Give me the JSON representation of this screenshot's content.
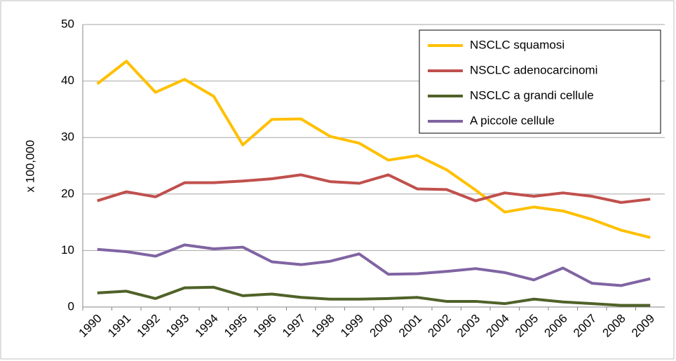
{
  "chart_data": {
    "type": "line",
    "y_label": "x 100,000",
    "categories": [
      "1990",
      "1991",
      "1992",
      "1993",
      "1994",
      "1995",
      "1996",
      "1997",
      "1998",
      "1999",
      "2000",
      "2001",
      "2002",
      "2003",
      "2004",
      "2005",
      "2006",
      "2007",
      "2008",
      "2009"
    ],
    "series": [
      {
        "name": "NSCLC squamosi",
        "color": "#ffc000",
        "values": [
          39.5,
          43.5,
          38,
          40.3,
          37.3,
          28.7,
          33.2,
          33.3,
          30.2,
          29,
          26,
          26.8,
          24.3,
          20.7,
          16.8,
          17.7,
          17,
          15.5,
          13.6,
          12.3
        ]
      },
      {
        "name": "NSCLC adenocarcinomi",
        "color": "#c0504d",
        "values": [
          18.8,
          20.4,
          19.5,
          22,
          22,
          22.3,
          22.7,
          23.4,
          22.2,
          21.9,
          23.4,
          20.9,
          20.8,
          18.8,
          20.2,
          19.6,
          20.2,
          19.6,
          18.5,
          19.1
        ]
      },
      {
        "name": "NSCLC a grandi cellule",
        "color": "#4f6228",
        "values": [
          2.5,
          2.8,
          1.5,
          3.4,
          3.5,
          2,
          2.3,
          1.7,
          1.4,
          1.4,
          1.5,
          1.7,
          1,
          1,
          0.6,
          1.4,
          0.9,
          0.6,
          0.3,
          0.3
        ]
      },
      {
        "name": "A piccole cellule",
        "color": "#8064a2",
        "values": [
          10.2,
          9.8,
          9,
          11,
          10.3,
          10.6,
          8,
          7.5,
          8.1,
          9.4,
          5.8,
          5.9,
          6.3,
          6.8,
          6.1,
          4.8,
          6.9,
          4.2,
          3.8,
          5
        ]
      }
    ],
    "ylim": [
      0,
      50
    ],
    "yticks": [
      0,
      10,
      20,
      30,
      40,
      50
    ],
    "grid": true,
    "legend": "top-right"
  }
}
